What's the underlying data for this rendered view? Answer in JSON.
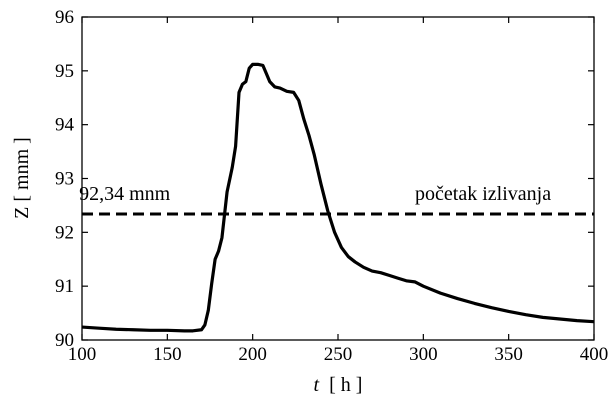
{
  "chart_data": {
    "type": "line",
    "xlabel": {
      "var": "t",
      "unit": "[ h ]"
    },
    "ylabel": "Z [ mnm ]",
    "xlim": [
      100,
      400
    ],
    "ylim": [
      90,
      96
    ],
    "xticks": [
      100,
      150,
      200,
      250,
      300,
      350,
      400
    ],
    "yticks": [
      90,
      91,
      92,
      93,
      94,
      95,
      96
    ],
    "grid": false,
    "series": [
      {
        "style": "solid",
        "color": "#000000",
        "x": [
          100,
          110,
          120,
          130,
          140,
          150,
          160,
          165,
          170,
          172,
          174,
          176,
          178,
          180,
          182,
          185,
          188,
          190,
          192,
          194,
          196,
          198,
          200,
          203,
          206,
          208,
          210,
          213,
          216,
          220,
          224,
          227,
          230,
          233,
          236,
          240,
          244,
          248,
          252,
          256,
          260,
          265,
          270,
          275,
          280,
          285,
          290,
          295,
          300,
          310,
          320,
          330,
          340,
          350,
          360,
          370,
          380,
          390,
          400
        ],
        "y": [
          90.24,
          90.22,
          90.2,
          90.19,
          90.18,
          90.18,
          90.17,
          90.17,
          90.19,
          90.28,
          90.55,
          91.05,
          91.5,
          91.65,
          91.9,
          92.75,
          93.2,
          93.6,
          94.6,
          94.75,
          94.8,
          95.05,
          95.12,
          95.12,
          95.1,
          94.95,
          94.8,
          94.7,
          94.68,
          94.62,
          94.6,
          94.45,
          94.1,
          93.8,
          93.45,
          92.9,
          92.4,
          92.0,
          91.72,
          91.55,
          91.45,
          91.35,
          91.28,
          91.25,
          91.2,
          91.15,
          91.1,
          91.08,
          91.0,
          90.87,
          90.77,
          90.68,
          90.6,
          90.53,
          90.47,
          90.42,
          90.39,
          90.36,
          90.34
        ]
      },
      {
        "style": "dashed",
        "color": "#000000",
        "x": [
          100,
          400
        ],
        "y": [
          92.34,
          92.34
        ]
      }
    ],
    "annotations": [
      {
        "text": "92,34 mnm",
        "x": 125,
        "y": 92.6
      },
      {
        "text": "početak izlivanja",
        "x": 335,
        "y": 92.6
      }
    ]
  }
}
